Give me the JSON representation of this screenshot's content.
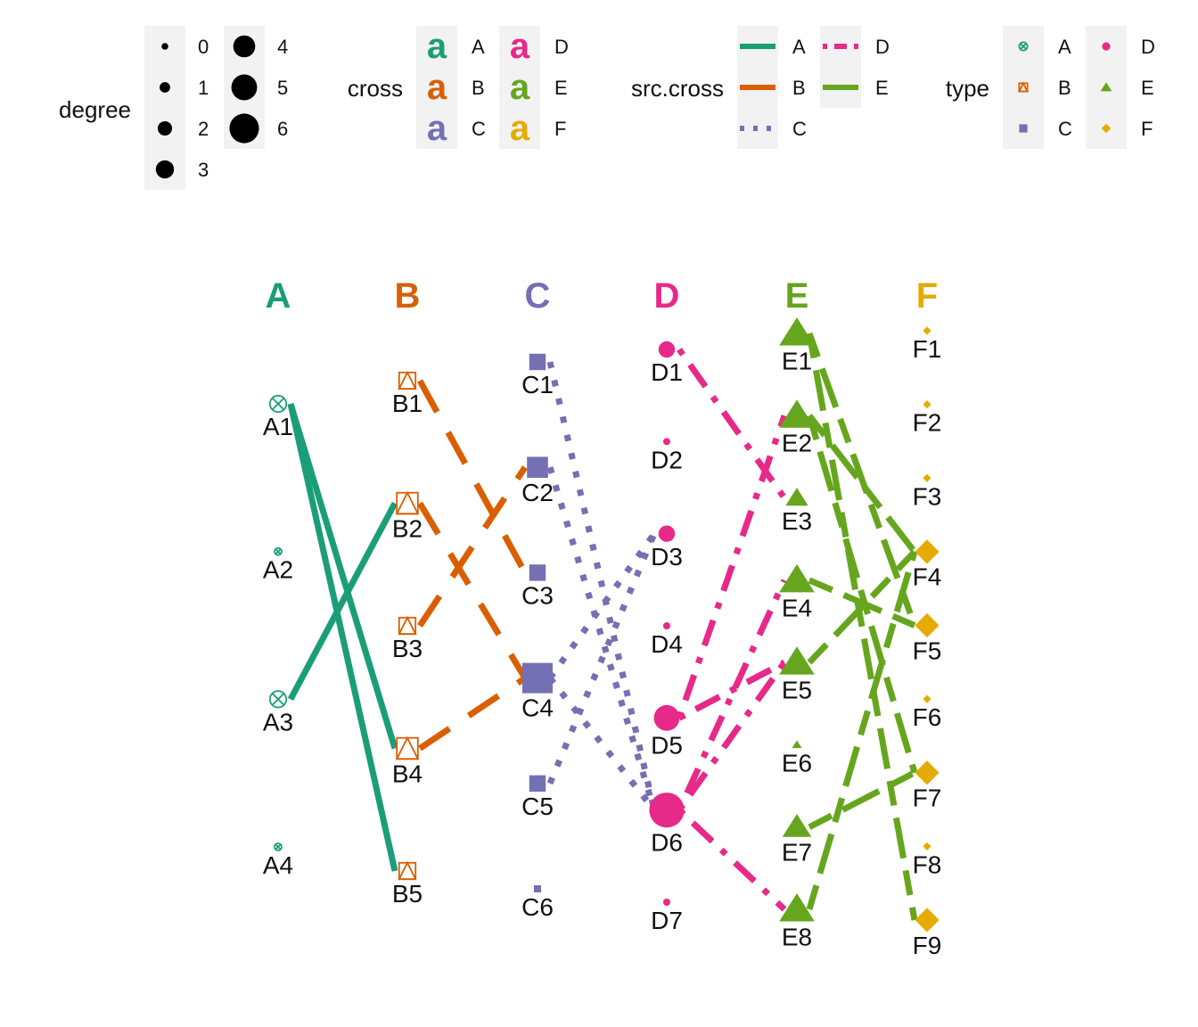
{
  "chart_data": {
    "type": "network",
    "title": "",
    "layers": [
      {
        "name": "A",
        "color": "#1b9e77",
        "shape": "circle-x",
        "nodes": [
          {
            "id": "A1",
            "degree": 2
          },
          {
            "id": "A2",
            "degree": 0
          },
          {
            "id": "A3",
            "degree": 2
          },
          {
            "id": "A4",
            "degree": 0
          }
        ]
      },
      {
        "name": "B",
        "color": "#d95f02",
        "shape": "square-triangle",
        "nodes": [
          {
            "id": "B1",
            "degree": 2
          },
          {
            "id": "B2",
            "degree": 3
          },
          {
            "id": "B3",
            "degree": 2
          },
          {
            "id": "B4",
            "degree": 3
          },
          {
            "id": "B5",
            "degree": 2
          }
        ]
      },
      {
        "name": "C",
        "color": "#7570b3",
        "shape": "square",
        "nodes": [
          {
            "id": "C1",
            "degree": 2
          },
          {
            "id": "C2",
            "degree": 3
          },
          {
            "id": "C3",
            "degree": 2
          },
          {
            "id": "C4",
            "degree": 5
          },
          {
            "id": "C5",
            "degree": 2
          },
          {
            "id": "C6",
            "degree": 0
          }
        ]
      },
      {
        "name": "D",
        "color": "#e7298a",
        "shape": "circle",
        "nodes": [
          {
            "id": "D1",
            "degree": 2
          },
          {
            "id": "D2",
            "degree": 0
          },
          {
            "id": "D3",
            "degree": 2
          },
          {
            "id": "D4",
            "degree": 0
          },
          {
            "id": "D5",
            "degree": 4
          },
          {
            "id": "D6",
            "degree": 6
          },
          {
            "id": "D7",
            "degree": 0
          }
        ]
      },
      {
        "name": "E",
        "color": "#66a61e",
        "shape": "triangle",
        "nodes": [
          {
            "id": "E1",
            "degree": 4
          },
          {
            "id": "E2",
            "degree": 4
          },
          {
            "id": "E3",
            "degree": 2
          },
          {
            "id": "E4",
            "degree": 4
          },
          {
            "id": "E5",
            "degree": 4
          },
          {
            "id": "E6",
            "degree": 0
          },
          {
            "id": "E7",
            "degree": 3
          },
          {
            "id": "E8",
            "degree": 4
          }
        ]
      },
      {
        "name": "F",
        "color": "#e6ab02",
        "shape": "diamond",
        "nodes": [
          {
            "id": "F1",
            "degree": 0
          },
          {
            "id": "F2",
            "degree": 0
          },
          {
            "id": "F3",
            "degree": 0
          },
          {
            "id": "F4",
            "degree": 3
          },
          {
            "id": "F5",
            "degree": 3
          },
          {
            "id": "F6",
            "degree": 0
          },
          {
            "id": "F7",
            "degree": 3
          },
          {
            "id": "F8",
            "degree": 0
          },
          {
            "id": "F9",
            "degree": 3
          }
        ]
      }
    ],
    "edges": [
      {
        "from": "A1",
        "to": "B4",
        "src_cross": "A"
      },
      {
        "from": "A1",
        "to": "B5",
        "src_cross": "A"
      },
      {
        "from": "A3",
        "to": "B2",
        "src_cross": "A"
      },
      {
        "from": "B1",
        "to": "C3",
        "src_cross": "B"
      },
      {
        "from": "B2",
        "to": "C4",
        "src_cross": "B"
      },
      {
        "from": "B3",
        "to": "C2",
        "src_cross": "B"
      },
      {
        "from": "B4",
        "to": "C4",
        "src_cross": "B"
      },
      {
        "from": "C1",
        "to": "D6",
        "src_cross": "C"
      },
      {
        "from": "C2",
        "to": "D6",
        "src_cross": "C"
      },
      {
        "from": "C4",
        "to": "D3",
        "src_cross": "C"
      },
      {
        "from": "C4",
        "to": "D6",
        "src_cross": "C"
      },
      {
        "from": "C5",
        "to": "D3",
        "src_cross": "C"
      },
      {
        "from": "D1",
        "to": "E3",
        "src_cross": "D"
      },
      {
        "from": "D5",
        "to": "E2",
        "src_cross": "D"
      },
      {
        "from": "D5",
        "to": "E5",
        "src_cross": "D"
      },
      {
        "from": "D6",
        "to": "E4",
        "src_cross": "D"
      },
      {
        "from": "D6",
        "to": "E5",
        "src_cross": "D"
      },
      {
        "from": "D6",
        "to": "E8",
        "src_cross": "D"
      },
      {
        "from": "D5",
        "to": "E5",
        "src_cross": "D"
      },
      {
        "from": "E1",
        "to": "F5",
        "src_cross": "E"
      },
      {
        "from": "E1",
        "to": "F9",
        "src_cross": "E"
      },
      {
        "from": "E2",
        "to": "F4",
        "src_cross": "E"
      },
      {
        "from": "E2",
        "to": "F7",
        "src_cross": "E"
      },
      {
        "from": "E4",
        "to": "F5",
        "src_cross": "E"
      },
      {
        "from": "E5",
        "to": "F4",
        "src_cross": "E"
      },
      {
        "from": "E7",
        "to": "F7",
        "src_cross": "E"
      },
      {
        "from": "E8",
        "to": "F4",
        "src_cross": "E"
      }
    ],
    "legends": {
      "degree": {
        "title": "degree",
        "entries": [
          "0",
          "1",
          "2",
          "3",
          "4",
          "5",
          "6"
        ]
      },
      "cross": {
        "title": "cross",
        "glyph": "a",
        "entries": [
          "A",
          "B",
          "C",
          "D",
          "E",
          "F"
        ]
      },
      "src_cross": {
        "title": "src.cross",
        "entries": [
          "A",
          "B",
          "C",
          "D",
          "E"
        ]
      },
      "type": {
        "title": "type",
        "entries": [
          "A",
          "B",
          "C",
          "D",
          "E",
          "F"
        ]
      }
    },
    "legend_position": "top",
    "line_styles": {
      "A": "solid",
      "B": "longdash",
      "C": "dotted",
      "D": "dotdash",
      "E": "twodash"
    }
  }
}
